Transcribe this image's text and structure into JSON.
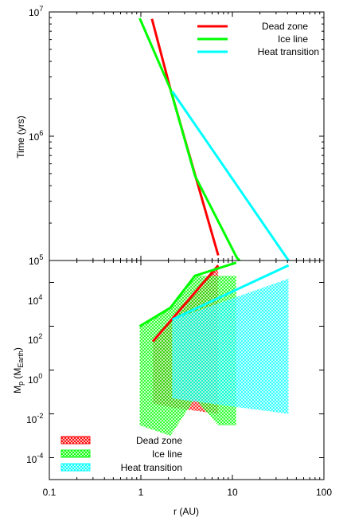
{
  "chart_data": [
    {
      "type": "line",
      "xscale": "log",
      "yscale": "log",
      "xlim": [
        0.1,
        100
      ],
      "ylim": [
        100000,
        10000000
      ],
      "ylabel": "Time (yrs)",
      "y_ticks": [
        {
          "base": "10",
          "exp": "5"
        },
        {
          "base": "10",
          "exp": "6"
        },
        {
          "base": "10",
          "exp": "7"
        }
      ],
      "legend_location": "top-right",
      "series": [
        {
          "name": "Dead zone",
          "color": "#ff0000",
          "points": [
            [
              1.32,
              8800000
            ],
            [
              2.1,
              2400000
            ],
            [
              7.0,
              110000
            ]
          ]
        },
        {
          "name": "Ice line",
          "color": "#00ff00",
          "points": [
            [
              0.97,
              8900000
            ],
            [
              2.1,
              2400000
            ],
            [
              3.9,
              480000
            ],
            [
              11.2,
              105000
            ],
            [
              12.0,
              100000
            ]
          ]
        },
        {
          "name": "Heat transition",
          "color": "#00ffff",
          "points": [
            [
              2.2,
              2300000
            ],
            [
              41.0,
              100000
            ]
          ]
        }
      ]
    },
    {
      "type": "scatter",
      "xscale": "log",
      "yscale": "log",
      "xlim": [
        0.1,
        100
      ],
      "ylim": [
        1e-05,
        100000
      ],
      "xlabel": "r (AU)",
      "ylabel_main": "M",
      "ylabel_sub_p": "p",
      "ylabel_open": " (M",
      "ylabel_sub_earth": "Earth",
      "ylabel_close": ")",
      "x_ticks": [
        "0.1",
        "1",
        "10",
        "100"
      ],
      "y_ticks": [
        {
          "base": "10",
          "exp": "-4"
        },
        {
          "base": "10",
          "exp": "-2"
        },
        {
          "base": "10",
          "exp": "0"
        },
        {
          "base": "10",
          "exp": "2"
        },
        {
          "base": "10",
          "exp": "4"
        }
      ],
      "legend_location": "bottom-left",
      "series": [
        {
          "name": "Dead zone",
          "color": "#ff0000",
          "trend_line": [
            [
              1.35,
              20
            ],
            [
              7.0,
              60000
            ]
          ],
          "hatched_region": [
            [
              1.35,
              20
            ],
            [
              7.0,
              60000
            ],
            [
              7.0,
              0.01
            ],
            [
              2.1,
              0.02
            ],
            [
              1.35,
              0.03
            ]
          ]
        },
        {
          "name": "Ice line",
          "color": "#00ff00",
          "trend_line": [
            [
              0.97,
              100
            ],
            [
              2.1,
              700
            ],
            [
              3.9,
              20000
            ],
            [
              11.0,
              80000
            ]
          ],
          "hatched_region": [
            [
              0.97,
              100
            ],
            [
              2.1,
              700
            ],
            [
              3.9,
              20000
            ],
            [
              11.0,
              20000
            ],
            [
              11.0,
              0.003
            ],
            [
              7.0,
              0.003
            ],
            [
              3.9,
              0.05
            ],
            [
              2.1,
              0.001
            ],
            [
              0.97,
              0.003
            ]
          ]
        },
        {
          "name": "Heat transition",
          "color": "#00ffff",
          "trend_line": [
            [
              2.2,
              200
            ],
            [
              41.0,
              60000
            ]
          ],
          "hatched_region": [
            [
              2.2,
              200
            ],
            [
              41.0,
              15000
            ],
            [
              41.0,
              0.01
            ],
            [
              2.2,
              0.05
            ]
          ]
        }
      ]
    }
  ]
}
